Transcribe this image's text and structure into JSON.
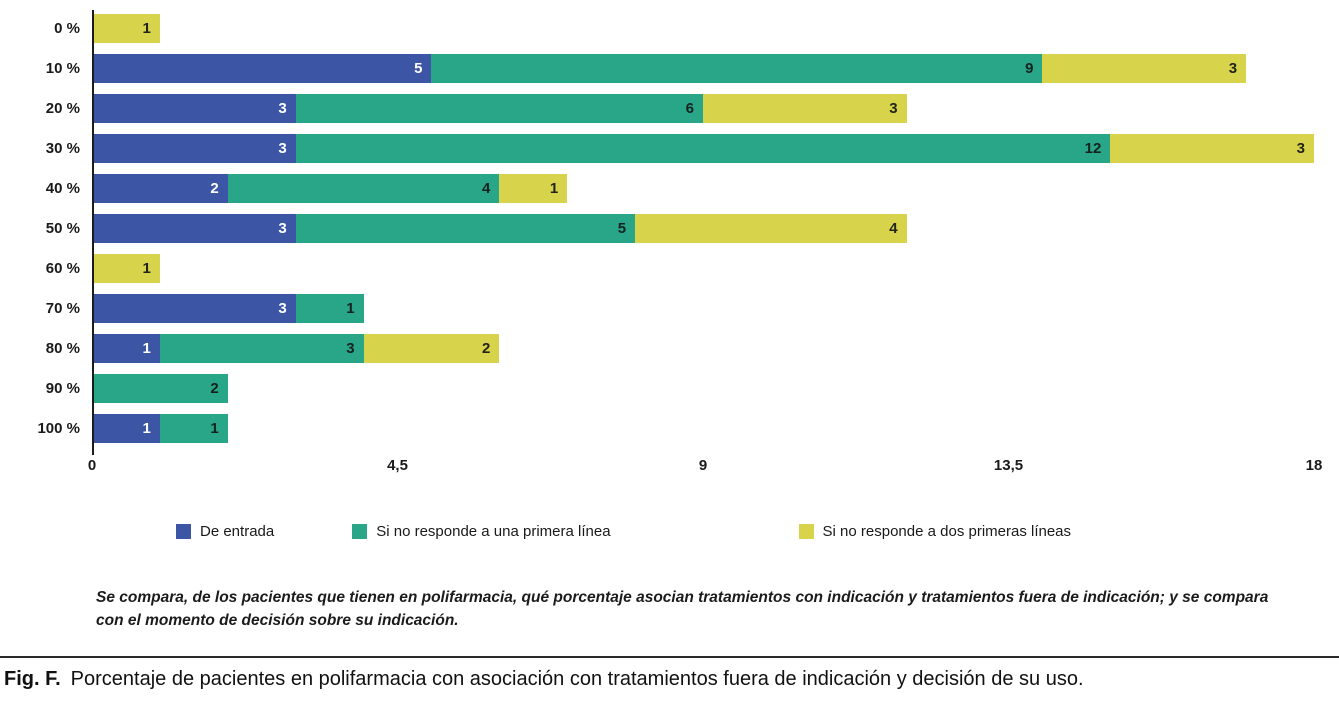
{
  "chart_data": {
    "type": "bar",
    "orientation": "horizontal",
    "stacked": true,
    "title": "",
    "xlabel": "",
    "ylabel": "",
    "categories": [
      "0 %",
      "10 %",
      "20 %",
      "30 %",
      "40 %",
      "50 %",
      "60 %",
      "70 %",
      "80 %",
      "90 %",
      "100 %"
    ],
    "series": [
      {
        "name": "De entrada",
        "color": "#3c55a5",
        "label_color": "#ffffff",
        "values": [
          0,
          5,
          3,
          3,
          2,
          3,
          0,
          3,
          1,
          0,
          1
        ]
      },
      {
        "name": "Si no responde a una primera línea",
        "color": "#29a687",
        "label_color": "#15221e",
        "values": [
          0,
          9,
          6,
          12,
          4,
          5,
          0,
          1,
          3,
          2,
          1
        ]
      },
      {
        "name": "Si no responde a dos primeras líneas",
        "color": "#d7d44b",
        "label_color": "#22241a",
        "values": [
          1,
          3,
          3,
          3,
          1,
          4,
          1,
          0,
          2,
          0,
          0
        ]
      }
    ],
    "xlim": [
      0,
      18
    ],
    "x_ticks": [
      {
        "label": "0",
        "value": 0
      },
      {
        "label": "4,5",
        "value": 4.5
      },
      {
        "label": "9",
        "value": 9
      },
      {
        "label": "13,5",
        "value": 13.5
      },
      {
        "label": "18",
        "value": 18
      }
    ],
    "grid": false,
    "legend_position": "bottom"
  },
  "note": "Se compara, de los pacientes que tienen en polifarmacia, qué porcentaje asocian tratamientos con indicación y tratamientos fuera de indicación; y se compara con el momento de decisión sobre su indicación.",
  "figure_caption": {
    "label": "Fig. F.",
    "text": "Porcentaje de pacientes en polifarmacia con asociación con tratamientos fuera de indicación y decisión de su uso."
  }
}
